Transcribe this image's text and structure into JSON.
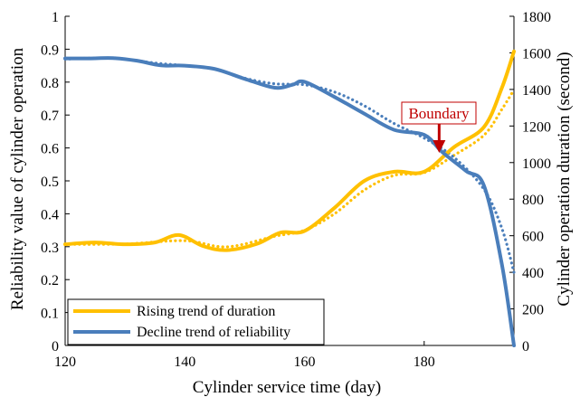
{
  "chart_data": {
    "type": "line",
    "title": "",
    "xlabel": "Cylinder service time (day)",
    "ylabel": "Reliability value  of cylinder operation",
    "y2label": "Cylinder operation duration (second)",
    "xlim": [
      120,
      195
    ],
    "ylim": [
      0,
      1
    ],
    "y2lim": [
      0,
      1800
    ],
    "x_ticks": [
      "120",
      "140",
      "160",
      "180"
    ],
    "y_ticks": [
      "0",
      "0.1",
      "0.2",
      "0.3",
      "0.4",
      "0.5",
      "0.6",
      "0.7",
      "0.8",
      "0.9",
      "1"
    ],
    "y2_ticks": [
      "0",
      "200",
      "400",
      "600",
      "800",
      "1000",
      "1200",
      "1400",
      "1600",
      "1800"
    ],
    "grid": false,
    "legend_position": "bottom-left",
    "annotation": {
      "label": "Boundary",
      "x": 182.5,
      "y": 0.585
    },
    "series": [
      {
        "name": "Rising trend of duration",
        "axis": "right",
        "style": "solid",
        "color": "#FFC000",
        "points": [
          [
            120,
            553
          ],
          [
            125,
            563
          ],
          [
            130,
            553
          ],
          [
            135,
            563
          ],
          [
            139,
            604
          ],
          [
            143,
            544
          ],
          [
            147,
            521
          ],
          [
            152,
            555
          ],
          [
            156,
            617
          ],
          [
            160,
            626
          ],
          [
            165,
            752
          ],
          [
            170,
            900
          ],
          [
            175,
            950
          ],
          [
            180,
            950
          ],
          [
            185,
            1085
          ],
          [
            190,
            1195
          ],
          [
            193,
            1410
          ],
          [
            195,
            1608
          ]
        ]
      },
      {
        "name": "Decline trend of reliability",
        "axis": "left",
        "style": "solid",
        "color": "#4A7EBB",
        "points": [
          [
            120,
            0.872
          ],
          [
            124,
            0.872
          ],
          [
            128,
            0.873
          ],
          [
            132,
            0.865
          ],
          [
            136,
            0.851
          ],
          [
            140,
            0.85
          ],
          [
            145,
            0.84
          ],
          [
            150,
            0.81
          ],
          [
            155,
            0.783
          ],
          [
            158,
            0.792
          ],
          [
            160,
            0.801
          ],
          [
            165,
            0.755
          ],
          [
            170,
            0.704
          ],
          [
            175,
            0.655
          ],
          [
            180,
            0.64
          ],
          [
            183,
            0.588
          ],
          [
            187,
            0.53
          ],
          [
            190,
            0.485
          ],
          [
            193,
            0.245
          ],
          [
            195,
            0.0
          ]
        ]
      },
      {
        "name": "",
        "axis": "right",
        "style": "dotted",
        "color": "#FFC000",
        "points": [
          [
            120,
            553
          ],
          [
            130,
            555
          ],
          [
            140,
            573
          ],
          [
            147,
            539
          ],
          [
            155,
            597
          ],
          [
            160,
            630
          ],
          [
            165,
            720
          ],
          [
            170,
            850
          ],
          [
            175,
            930
          ],
          [
            180,
            945
          ],
          [
            185,
            1040
          ],
          [
            190,
            1150
          ],
          [
            193,
            1292
          ],
          [
            195,
            1398
          ]
        ]
      },
      {
        "name": "",
        "axis": "left",
        "style": "dotted",
        "color": "#4A7EBB",
        "points": [
          [
            120,
            0.87
          ],
          [
            128,
            0.873
          ],
          [
            135,
            0.858
          ],
          [
            140,
            0.85
          ],
          [
            145,
            0.84
          ],
          [
            150,
            0.812
          ],
          [
            155,
            0.795
          ],
          [
            160,
            0.792
          ],
          [
            165,
            0.77
          ],
          [
            170,
            0.728
          ],
          [
            175,
            0.674
          ],
          [
            180,
            0.63
          ],
          [
            185,
            0.571
          ],
          [
            190,
            0.474
          ],
          [
            193,
            0.355
          ],
          [
            195,
            0.222
          ]
        ]
      }
    ]
  }
}
